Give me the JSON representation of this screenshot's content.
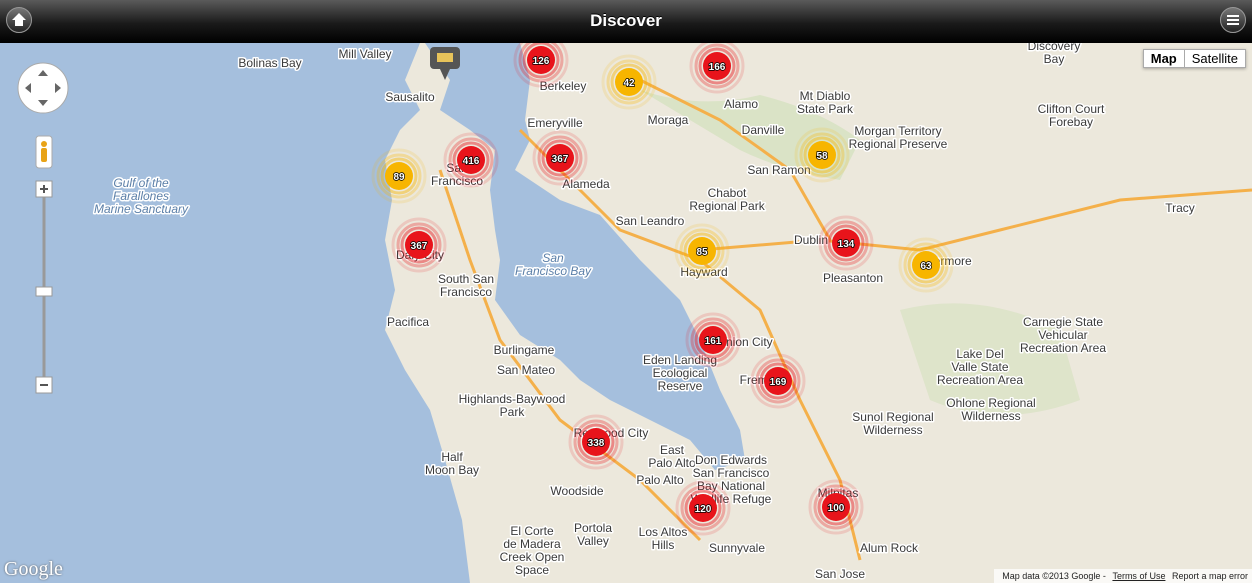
{
  "header": {
    "title": "Discover"
  },
  "map_type": {
    "options": [
      "Map",
      "Satellite"
    ]
  },
  "clusters": [
    {
      "count": 126,
      "color": "#e8141b"
    },
    {
      "count": 42,
      "color": "#f7b500"
    },
    {
      "count": 166,
      "color": "#e8141b"
    },
    {
      "count": 416,
      "color": "#e8141b"
    },
    {
      "count": 367,
      "color": "#e8141b"
    },
    {
      "count": 89,
      "color": "#f7b500"
    },
    {
      "count": 58,
      "color": "#f7b500"
    },
    {
      "count": 367,
      "color": "#e8141b"
    },
    {
      "count": 85,
      "color": "#f7b500"
    },
    {
      "count": 134,
      "color": "#e8141b"
    },
    {
      "count": 63,
      "color": "#f7b500"
    },
    {
      "count": 161,
      "color": "#e8141b"
    },
    {
      "count": 169,
      "color": "#e8141b"
    },
    {
      "count": 338,
      "color": "#e8141b"
    },
    {
      "count": 120,
      "color": "#e8141b"
    },
    {
      "count": 100,
      "color": "#e8141b"
    }
  ],
  "places": [
    {
      "lines": [
        "Mill Valley"
      ]
    },
    {
      "lines": [
        "Sausalito"
      ]
    },
    {
      "lines": [
        "Bolinas Bay"
      ]
    },
    {
      "lines": [
        "Berkeley"
      ]
    },
    {
      "lines": [
        "Emeryville"
      ]
    },
    {
      "lines": [
        "Moraga"
      ]
    },
    {
      "lines": [
        "Alamo"
      ]
    },
    {
      "lines": [
        "Danville"
      ]
    },
    {
      "lines": [
        "Mt Diablo",
        "State Park"
      ]
    },
    {
      "lines": [
        "Morgan Territory",
        "Regional Preserve"
      ]
    },
    {
      "lines": [
        "San Ramon"
      ]
    },
    {
      "lines": [
        "San",
        "Francisco"
      ]
    },
    {
      "lines": [
        "Alameda"
      ]
    },
    {
      "lines": [
        "Gulf of the",
        "Farallones",
        "Marine Sanctuary"
      ]
    },
    {
      "lines": [
        "Chabot",
        "Regional Park"
      ]
    },
    {
      "lines": [
        "San Leandro"
      ]
    },
    {
      "lines": [
        "Dublin"
      ]
    },
    {
      "lines": [
        "Pleasanton"
      ]
    },
    {
      "lines": [
        "Livermore"
      ]
    },
    {
      "lines": [
        "Tracy"
      ]
    },
    {
      "lines": [
        "Discovery",
        "Bay"
      ]
    },
    {
      "lines": [
        "Clifton Court",
        "Forebay"
      ]
    },
    {
      "lines": [
        "Hayward"
      ]
    },
    {
      "lines": [
        "Daly City"
      ]
    },
    {
      "lines": [
        "South San",
        "Francisco"
      ]
    },
    {
      "lines": [
        "San",
        "Francisco Bay"
      ]
    },
    {
      "lines": [
        "Pacifica"
      ]
    },
    {
      "lines": [
        "Burlingame"
      ]
    },
    {
      "lines": [
        "San Mateo"
      ]
    },
    {
      "lines": [
        "Highlands-Baywood",
        "Park"
      ]
    },
    {
      "lines": [
        "Eden Landing",
        "Ecological",
        "Reserve"
      ]
    },
    {
      "lines": [
        "Union City"
      ]
    },
    {
      "lines": [
        "Fremont"
      ]
    },
    {
      "lines": [
        "Lake Del",
        "Valle State",
        "Recreation Area"
      ]
    },
    {
      "lines": [
        "Carnegie State",
        "Vehicular",
        "Recreation Area"
      ]
    },
    {
      "lines": [
        "Ohlone Regional",
        "Wilderness"
      ]
    },
    {
      "lines": [
        "Sunol Regional",
        "Wilderness"
      ]
    },
    {
      "lines": [
        "Redwood City"
      ]
    },
    {
      "lines": [
        "Half",
        "Moon Bay"
      ]
    },
    {
      "lines": [
        "East",
        "Palo Alto"
      ]
    },
    {
      "lines": [
        "Palo Alto"
      ]
    },
    {
      "lines": [
        "Don Edwards",
        "San Francisco",
        "Bay National",
        "Wildlife Refuge"
      ]
    },
    {
      "lines": [
        "Woodside"
      ]
    },
    {
      "lines": [
        "Portola",
        "Valley"
      ]
    },
    {
      "lines": [
        "El Corte",
        "de Madera",
        "Creek Open",
        "Space"
      ]
    },
    {
      "lines": [
        "Los Altos",
        "Hills"
      ]
    },
    {
      "lines": [
        "Sunnyvale"
      ]
    },
    {
      "lines": [
        "Milpitas"
      ]
    },
    {
      "lines": [
        "Alum Rock"
      ]
    },
    {
      "lines": [
        "San Jose"
      ]
    }
  ],
  "footer": {
    "attribution": "Map data ©2013 Google -",
    "terms": "Terms of Use",
    "report": "Report a map error"
  },
  "logo": "Google"
}
